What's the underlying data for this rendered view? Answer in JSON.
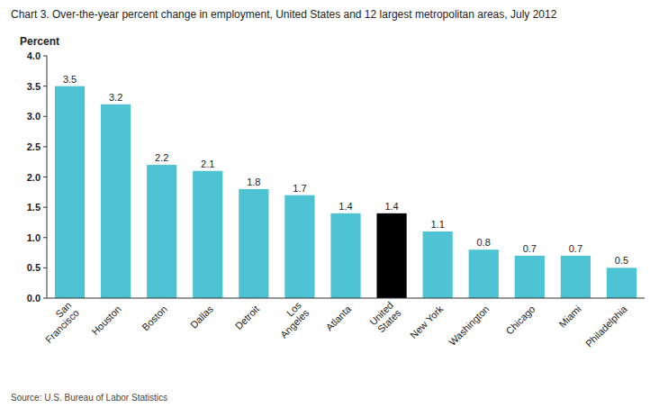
{
  "chart_data": {
    "type": "bar",
    "title": "Chart 3. Over-the-year percent change in employment,  United States and 12 largest metropolitan areas, July 2012",
    "ylabel": "Percent",
    "annotations": [
      "Source: U.S. Bureau of Labor Statistics"
    ],
    "categories": [
      "San\nFrancisco",
      "Houston",
      "Boston",
      "Dallas",
      "Detroit",
      "Los\nAngeles",
      "Atlanta",
      "United\nStates",
      "New York",
      "Washington",
      "Chicago",
      "Miami",
      "Philadelphia"
    ],
    "values": [
      3.5,
      3.2,
      2.2,
      2.1,
      1.8,
      1.7,
      1.4,
      1.4,
      1.1,
      0.8,
      0.7,
      0.7,
      0.5
    ],
    "colors": [
      "#4dc3d4",
      "#4dc3d4",
      "#4dc3d4",
      "#4dc3d4",
      "#4dc3d4",
      "#4dc3d4",
      "#4dc3d4",
      "#000000",
      "#4dc3d4",
      "#4dc3d4",
      "#4dc3d4",
      "#4dc3d4",
      "#4dc3d4"
    ],
    "ylim": [
      0,
      4
    ],
    "yticks": [
      {
        "value": 0,
        "label": "0.0"
      },
      0.5,
      {
        "value": 1,
        "label": "1.0"
      },
      1.5,
      {
        "value": 2,
        "label": "2.0"
      },
      2.5,
      {
        "value": 3,
        "label": "3.0"
      },
      3.5,
      {
        "value": 4,
        "label": "4.0"
      }
    ],
    "data_labels": true,
    "grid": false
  }
}
